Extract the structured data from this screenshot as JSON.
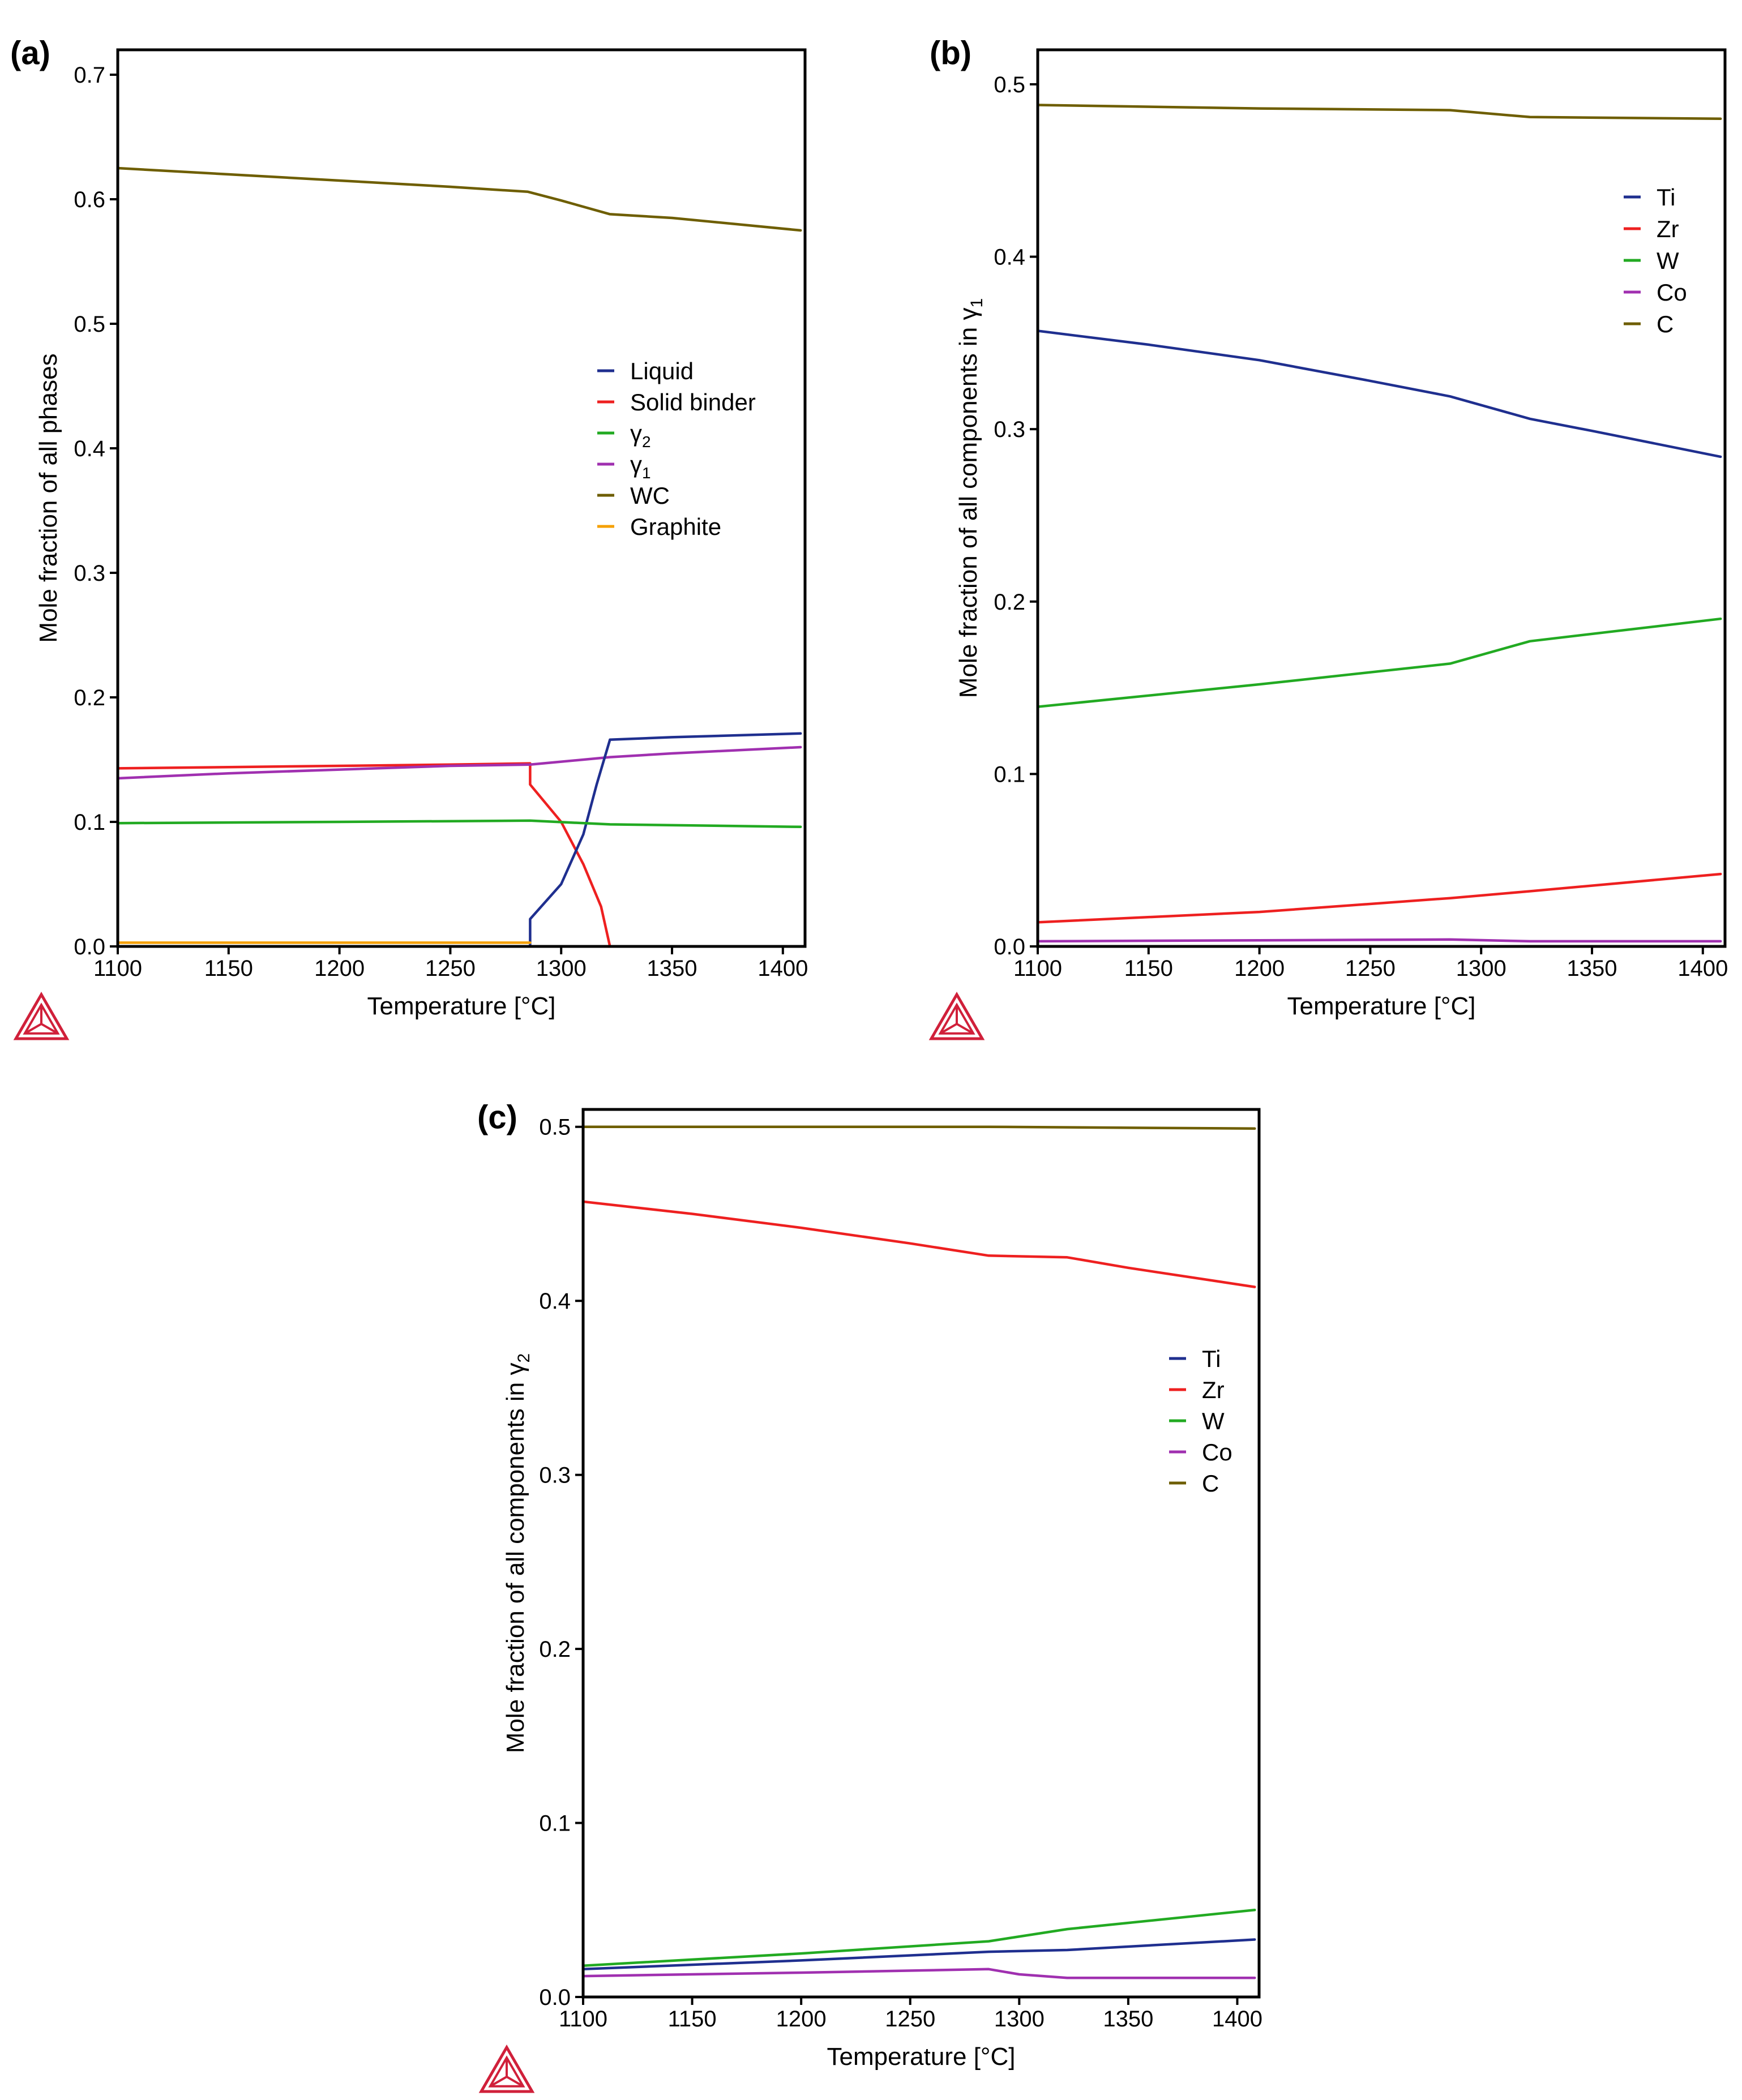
{
  "figure": {
    "colors": {
      "Liquid": "#1f2f8f",
      "Solid binder": "#ee2020",
      "γ2": "#22aa22",
      "γ1": "#a030b0",
      "WC": "#6e5e00",
      "Graphite": "#f5a000",
      "Ti": "#1f2f8f",
      "Zr": "#ee2020",
      "W": "#22aa22",
      "Co": "#a030b0",
      "C": "#6e5e00"
    }
  },
  "chart_data": [
    {
      "id": "a",
      "panel_label": "(a)",
      "type": "line",
      "xlabel": "Temperature [°C]",
      "ylabel": "Mole fraction of all phases",
      "xlim": [
        1100,
        1410
      ],
      "ylim": [
        0,
        0.72
      ],
      "xticks": [
        1100,
        1150,
        1200,
        1250,
        1300,
        1350,
        1400
      ],
      "yticks": [
        0.0,
        0.1,
        0.2,
        0.3,
        0.4,
        0.5,
        0.6,
        0.7
      ],
      "ytick_labels": [
        "0.0",
        "0.1",
        "0.2",
        "0.3",
        "0.4",
        "0.5",
        "0.6",
        "0.7"
      ],
      "legend": [
        {
          "name": "Liquid",
          "label": "Liquid"
        },
        {
          "name": "Solid binder",
          "label": "Solid binder"
        },
        {
          "name": "γ2",
          "label": "γ",
          "sub": "2"
        },
        {
          "name": "γ1",
          "label": "γ",
          "sub": "1"
        },
        {
          "name": "WC",
          "label": "WC"
        },
        {
          "name": "Graphite",
          "label": "Graphite"
        }
      ],
      "series": [
        {
          "name": "WC",
          "x": [
            1100,
            1150,
            1200,
            1250,
            1285,
            1300,
            1322,
            1350,
            1408
          ],
          "y": [
            0.625,
            0.62,
            0.615,
            0.61,
            0.606,
            0.599,
            0.588,
            0.585,
            0.575
          ]
        },
        {
          "name": "Solid binder",
          "x": [
            1100,
            1150,
            1200,
            1250,
            1286,
            1286,
            1300,
            1310,
            1318,
            1322
          ],
          "y": [
            0.143,
            0.144,
            0.145,
            0.146,
            0.147,
            0.13,
            0.1,
            0.066,
            0.032,
            0.0
          ]
        },
        {
          "name": "γ1",
          "x": [
            1100,
            1150,
            1200,
            1250,
            1286,
            1322,
            1350,
            1408
          ],
          "y": [
            0.135,
            0.139,
            0.142,
            0.145,
            0.146,
            0.152,
            0.155,
            0.16
          ]
        },
        {
          "name": "Liquid",
          "x": [
            1286,
            1286,
            1300,
            1310,
            1316,
            1322,
            1350,
            1408
          ],
          "y": [
            0.0,
            0.022,
            0.05,
            0.09,
            0.13,
            0.166,
            0.168,
            0.171
          ]
        },
        {
          "name": "γ2",
          "x": [
            1100,
            1200,
            1286,
            1322,
            1408
          ],
          "y": [
            0.099,
            0.1,
            0.101,
            0.098,
            0.096
          ]
        },
        {
          "name": "Graphite",
          "x": [
            1100,
            1286
          ],
          "y": [
            0.003,
            0.003
          ]
        }
      ]
    },
    {
      "id": "b",
      "panel_label": "(b)",
      "type": "line",
      "xlabel": "Temperature [°C]",
      "ylabel": "Mole fraction of all components in γ",
      "ylabel_sub": "1",
      "xlim": [
        1100,
        1410
      ],
      "ylim": [
        0,
        0.52
      ],
      "xticks": [
        1100,
        1150,
        1200,
        1250,
        1300,
        1350,
        1400
      ],
      "yticks": [
        0.0,
        0.1,
        0.2,
        0.3,
        0.4,
        0.5
      ],
      "ytick_labels": [
        "0.0",
        "0.1",
        "0.2",
        "0.3",
        "0.4",
        "0.5"
      ],
      "legend": [
        {
          "name": "Ti",
          "label": "Ti"
        },
        {
          "name": "Zr",
          "label": "Zr"
        },
        {
          "name": "W",
          "label": "W"
        },
        {
          "name": "Co",
          "label": "Co"
        },
        {
          "name": "C",
          "label": "C"
        }
      ],
      "series": [
        {
          "name": "C",
          "x": [
            1100,
            1200,
            1286,
            1322,
            1408
          ],
          "y": [
            0.488,
            0.486,
            0.485,
            0.481,
            0.48
          ]
        },
        {
          "name": "Ti",
          "x": [
            1100,
            1150,
            1200,
            1250,
            1286,
            1322,
            1350,
            1408
          ],
          "y": [
            0.357,
            0.349,
            0.34,
            0.328,
            0.319,
            0.306,
            0.299,
            0.284
          ]
        },
        {
          "name": "W",
          "x": [
            1100,
            1200,
            1286,
            1322,
            1408
          ],
          "y": [
            0.139,
            0.152,
            0.164,
            0.177,
            0.19
          ]
        },
        {
          "name": "Zr",
          "x": [
            1100,
            1200,
            1286,
            1322,
            1408
          ],
          "y": [
            0.014,
            0.02,
            0.028,
            0.032,
            0.042
          ]
        },
        {
          "name": "Co",
          "x": [
            1100,
            1286,
            1322,
            1408
          ],
          "y": [
            0.003,
            0.004,
            0.003,
            0.003
          ]
        }
      ]
    },
    {
      "id": "c",
      "panel_label": "(c)",
      "type": "line",
      "xlabel": "Temperature [°C]",
      "ylabel": "Mole fraction of all components in γ",
      "ylabel_sub": "2",
      "xlim": [
        1100,
        1410
      ],
      "ylim": [
        0,
        0.51
      ],
      "xticks": [
        1100,
        1150,
        1200,
        1250,
        1300,
        1350,
        1400
      ],
      "yticks": [
        0.0,
        0.1,
        0.2,
        0.3,
        0.4,
        0.5
      ],
      "ytick_labels": [
        "0.0",
        "0.1",
        "0.2",
        "0.3",
        "0.4",
        "0.5"
      ],
      "legend": [
        {
          "name": "Ti",
          "label": "Ti"
        },
        {
          "name": "Zr",
          "label": "Zr"
        },
        {
          "name": "W",
          "label": "W"
        },
        {
          "name": "Co",
          "label": "Co"
        },
        {
          "name": "C",
          "label": "C"
        }
      ],
      "series": [
        {
          "name": "C",
          "x": [
            1100,
            1286,
            1408
          ],
          "y": [
            0.5,
            0.5,
            0.499
          ]
        },
        {
          "name": "Zr",
          "x": [
            1100,
            1150,
            1200,
            1250,
            1286,
            1322,
            1350,
            1408
          ],
          "y": [
            0.457,
            0.45,
            0.442,
            0.433,
            0.426,
            0.425,
            0.419,
            0.408
          ]
        },
        {
          "name": "W",
          "x": [
            1100,
            1200,
            1286,
            1322,
            1408
          ],
          "y": [
            0.018,
            0.025,
            0.032,
            0.039,
            0.05
          ]
        },
        {
          "name": "Ti",
          "x": [
            1100,
            1200,
            1286,
            1322,
            1408
          ],
          "y": [
            0.016,
            0.021,
            0.026,
            0.027,
            0.033
          ]
        },
        {
          "name": "Co",
          "x": [
            1100,
            1200,
            1286,
            1300,
            1322,
            1408
          ],
          "y": [
            0.012,
            0.014,
            0.016,
            0.013,
            0.011,
            0.011
          ]
        }
      ]
    }
  ]
}
